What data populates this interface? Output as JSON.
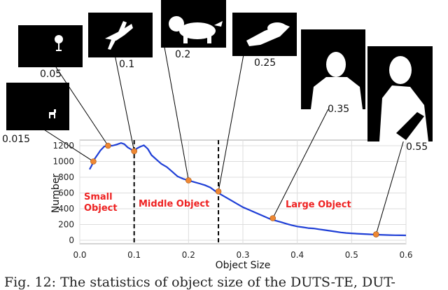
{
  "chart_data": {
    "type": "line",
    "xlabel": "Object Size",
    "ylabel": "Number",
    "xlim": [
      0,
      0.6
    ],
    "ylim": [
      0,
      1250
    ],
    "x_ticks": [
      0.0,
      0.1,
      0.2,
      0.3,
      0.4,
      0.5,
      0.6
    ],
    "x_tick_labels": [
      "0.0",
      "0.1",
      "0.2",
      "0.3",
      "0.4",
      "0.5",
      "0.6"
    ],
    "y_ticks": [
      0,
      200,
      400,
      600,
      800,
      1000,
      1200
    ],
    "y_tick_labels": [
      "0",
      "200",
      "400",
      "600",
      "800",
      "1000",
      "1200"
    ],
    "grid": true,
    "line_color": "#1f3fd6",
    "marker_color": "#ee8833",
    "region_color": "#ee2222",
    "series": [
      {
        "x": [
          0.018,
          0.022,
          0.027,
          0.032,
          0.038,
          0.045,
          0.052,
          0.06,
          0.068,
          0.076,
          0.082,
          0.088,
          0.095,
          0.1,
          0.105,
          0.112,
          0.118,
          0.125,
          0.132,
          0.14,
          0.15,
          0.16,
          0.17,
          0.18,
          0.19,
          0.2,
          0.21,
          0.22,
          0.23,
          0.24,
          0.25,
          0.26,
          0.27,
          0.28,
          0.29,
          0.3,
          0.31,
          0.32,
          0.33,
          0.34,
          0.35,
          0.36,
          0.37,
          0.38,
          0.39,
          0.4,
          0.41,
          0.42,
          0.43,
          0.44,
          0.45,
          0.46,
          0.47,
          0.48,
          0.49,
          0.5,
          0.51,
          0.52,
          0.53,
          0.54,
          0.55,
          0.56,
          0.57,
          0.58,
          0.59,
          0.6
        ],
        "y": [
          900,
          950,
          1030,
          1080,
          1140,
          1190,
          1200,
          1200,
          1215,
          1235,
          1220,
          1180,
          1150,
          1130,
          1165,
          1190,
          1205,
          1160,
          1080,
          1030,
          970,
          930,
          870,
          810,
          780,
          760,
          740,
          720,
          700,
          670,
          620,
          580,
          540,
          500,
          460,
          420,
          390,
          360,
          330,
          300,
          270,
          250,
          230,
          210,
          190,
          175,
          165,
          155,
          150,
          140,
          130,
          120,
          110,
          100,
          92,
          88,
          84,
          80,
          76,
          73,
          70,
          68,
          66,
          64,
          63,
          62
        ]
      }
    ],
    "markers": [
      {
        "x": 0.025,
        "y": 1000
      },
      {
        "x": 0.052,
        "y": 1200
      },
      {
        "x": 0.1,
        "y": 1130
      },
      {
        "x": 0.2,
        "y": 760
      },
      {
        "x": 0.255,
        "y": 620
      },
      {
        "x": 0.355,
        "y": 280
      },
      {
        "x": 0.545,
        "y": 75
      }
    ],
    "dividers": [
      0.1,
      0.255
    ],
    "regions": [
      {
        "label_line1": "Small",
        "label_line2": "Object"
      },
      {
        "label_line1": "Middle Object",
        "label_line2": ""
      },
      {
        "label_line1": "Large Object",
        "label_line2": ""
      }
    ],
    "thumbnails": [
      {
        "label": "0.015",
        "shape": "small-animal-silhouette",
        "fill": 0.015
      },
      {
        "label": "0.05",
        "shape": "lamp-silhouette",
        "fill": 0.05
      },
      {
        "label": "0.1",
        "shape": "bird-silhouette",
        "fill": 0.1
      },
      {
        "label": "0.2",
        "shape": "dog-silhouette",
        "fill": 0.2
      },
      {
        "label": "0.25",
        "shape": "lying-person-silhouette",
        "fill": 0.25
      },
      {
        "label": "0.35",
        "shape": "person-silhouette",
        "fill": 0.35
      },
      {
        "label": "0.55",
        "shape": "large-person-silhouette",
        "fill": 0.55
      }
    ]
  },
  "caption": "Fig. 12: The statistics of object size of the DUTS-TE, DUT-"
}
